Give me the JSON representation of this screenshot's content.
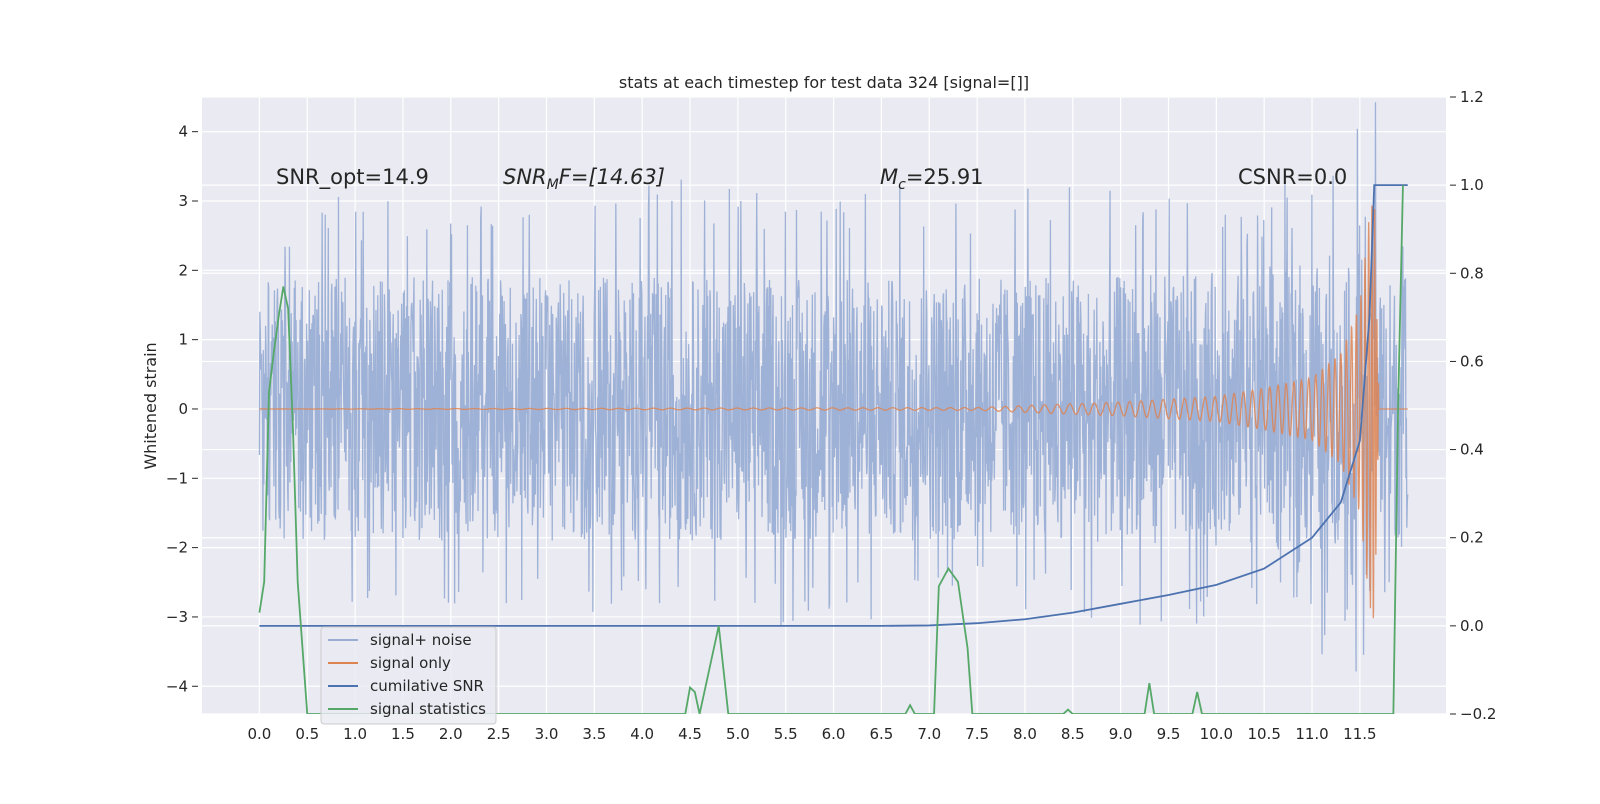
{
  "chart_data": {
    "type": "line",
    "title": "stats at each timestep for test data 324 [signal=[]]",
    "ylabel": "Whitened strain",
    "xlabel": "",
    "x_range": [
      -0.6,
      12.4
    ],
    "ylim": [
      -4.4,
      4.5
    ],
    "y2lim": [
      -0.2,
      1.2
    ],
    "xticks": [
      "0.0",
      "0.5",
      "1.0",
      "1.5",
      "2.0",
      "2.5",
      "3.0",
      "3.5",
      "4.0",
      "4.5",
      "5.0",
      "5.5",
      "6.0",
      "6.5",
      "7.0",
      "7.5",
      "8.0",
      "8.5",
      "9.0",
      "9.5",
      "10.0",
      "10.5",
      "11.0",
      "11.5"
    ],
    "yticks": [
      "−4",
      "−3",
      "−2",
      "−1",
      "0",
      "1",
      "2",
      "3",
      "4"
    ],
    "y2ticks": [
      "−0.2",
      "0.0",
      "0.2",
      "0.4",
      "0.6",
      "0.8",
      "1.0",
      "1.2"
    ],
    "grid": true,
    "legend_position": "lower-left",
    "annotations": {
      "snr_opt": "SNR_opt=14.9",
      "snr_mf_base": "SNR",
      "snr_mf_sub": "M",
      "snr_mf_rest": "F=[14.63]",
      "mc_base": "M",
      "mc_sub": "c",
      "mc_rest": "=25.91",
      "csnr": "CSNR=0.0"
    },
    "series": [
      {
        "name": "signal+ noise",
        "color": "#9aaed4",
        "axis": "left",
        "description": "whitened noisy strain, roughly uniform band between about -2 and 2 with spikes to about ±3.3 (max ≈4.1 near x=11.55, min ≈-4.1 near x=11.65)",
        "x": [
          0.0,
          0.5,
          1.0,
          1.5,
          2.0,
          2.5,
          3.0,
          3.5,
          4.0,
          4.5,
          5.0,
          5.5,
          6.0,
          6.5,
          7.0,
          7.5,
          8.0,
          8.5,
          9.0,
          9.5,
          10.0,
          10.5,
          11.0,
          11.5,
          12.0
        ],
        "envelope_high": [
          2.2,
          3.2,
          3.0,
          3.1,
          3.1,
          3.2,
          3.2,
          3.3,
          3.4,
          3.3,
          3.2,
          3.1,
          3.1,
          3.3,
          3.2,
          3.1,
          3.3,
          3.3,
          3.2,
          3.3,
          3.2,
          3.1,
          3.2,
          4.1,
          2.2
        ],
        "envelope_low": [
          -1.3,
          -2.9,
          -2.8,
          -2.9,
          -2.8,
          -2.9,
          -2.8,
          -3.2,
          -2.8,
          -2.9,
          -2.8,
          -3.2,
          -2.9,
          -3.3,
          -2.9,
          -2.8,
          -2.9,
          -3.0,
          -3.2,
          -3.3,
          -3.1,
          -3.0,
          -3.0,
          -4.1,
          -1.8
        ]
      },
      {
        "name": "signal only",
        "color": "#dd8452",
        "axis": "left",
        "description": "chirp signal, flat near 0 until ~7.5, amplitude growing to ~0.7 near 11, peaking ~±3.2 at ~11.65 then returning to 0",
        "x": [
          0.0,
          7.5,
          8.0,
          9.0,
          10.0,
          10.5,
          11.0,
          11.3,
          11.5,
          11.6,
          11.65,
          11.7,
          12.0
        ],
        "amplitude": [
          0.0,
          0.02,
          0.05,
          0.1,
          0.18,
          0.3,
          0.45,
          0.8,
          1.5,
          2.8,
          3.2,
          0.0,
          0.0
        ]
      },
      {
        "name": "cumilative SNR",
        "color": "#4c72b0",
        "axis": "right",
        "x": [
          0.0,
          6.5,
          7.0,
          7.5,
          8.0,
          8.5,
          9.0,
          9.5,
          10.0,
          10.5,
          11.0,
          11.3,
          11.5,
          11.6,
          11.65,
          11.7,
          12.0
        ],
        "y": [
          0.0,
          0.0,
          0.001,
          0.006,
          0.015,
          0.03,
          0.05,
          0.07,
          0.093,
          0.13,
          0.2,
          0.28,
          0.42,
          0.7,
          1.0,
          1.0,
          1.0
        ]
      },
      {
        "name": "signal statistics",
        "color": "#55a868",
        "axis": "right",
        "x": [
          0.0,
          0.05,
          0.1,
          0.15,
          0.2,
          0.25,
          0.3,
          0.35,
          0.4,
          0.45,
          0.5,
          4.45,
          4.5,
          4.55,
          4.6,
          4.7,
          4.8,
          4.85,
          4.9,
          6.75,
          6.8,
          6.85,
          7.05,
          7.1,
          7.2,
          7.3,
          7.4,
          7.45,
          8.4,
          8.45,
          8.5,
          9.25,
          9.3,
          9.35,
          9.75,
          9.8,
          9.85,
          11.85,
          11.9,
          11.95
        ],
        "y": [
          0.03,
          0.1,
          0.53,
          0.62,
          0.7,
          0.77,
          0.72,
          0.45,
          0.1,
          -0.05,
          -0.2,
          -0.2,
          -0.14,
          -0.15,
          -0.2,
          -0.1,
          0.0,
          -0.1,
          -0.2,
          -0.2,
          -0.18,
          -0.2,
          -0.2,
          0.09,
          0.13,
          0.1,
          -0.05,
          -0.2,
          -0.2,
          -0.19,
          -0.2,
          -0.2,
          -0.13,
          -0.2,
          -0.2,
          -0.15,
          -0.2,
          -0.2,
          0.5,
          1.0
        ]
      }
    ]
  }
}
